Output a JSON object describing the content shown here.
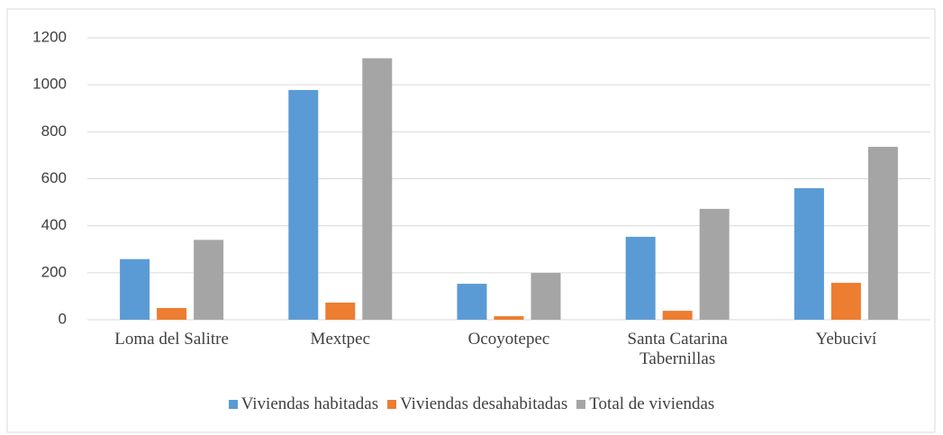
{
  "chart_data": {
    "type": "bar",
    "categories": [
      "Loma del Salitre",
      "Mextpec",
      "Ocoyotepec",
      "Santa Catarina Tabernillas",
      "Yebuciví"
    ],
    "series": [
      {
        "name": "Viviendas habitadas",
        "color": "#5b9bd5",
        "values": [
          258,
          978,
          153,
          353,
          560
        ]
      },
      {
        "name": "Viviendas desahabitadas",
        "color": "#ed7d31",
        "values": [
          50,
          73,
          15,
          38,
          157
        ]
      },
      {
        "name": "Total de viviendas",
        "color": "#a5a5a5",
        "values": [
          340,
          1113,
          199,
          472,
          736
        ]
      }
    ],
    "ylim": [
      0,
      1200
    ],
    "yticks": [
      0,
      200,
      400,
      600,
      800,
      1000,
      1200
    ],
    "grid": true,
    "legend": "bottom"
  }
}
